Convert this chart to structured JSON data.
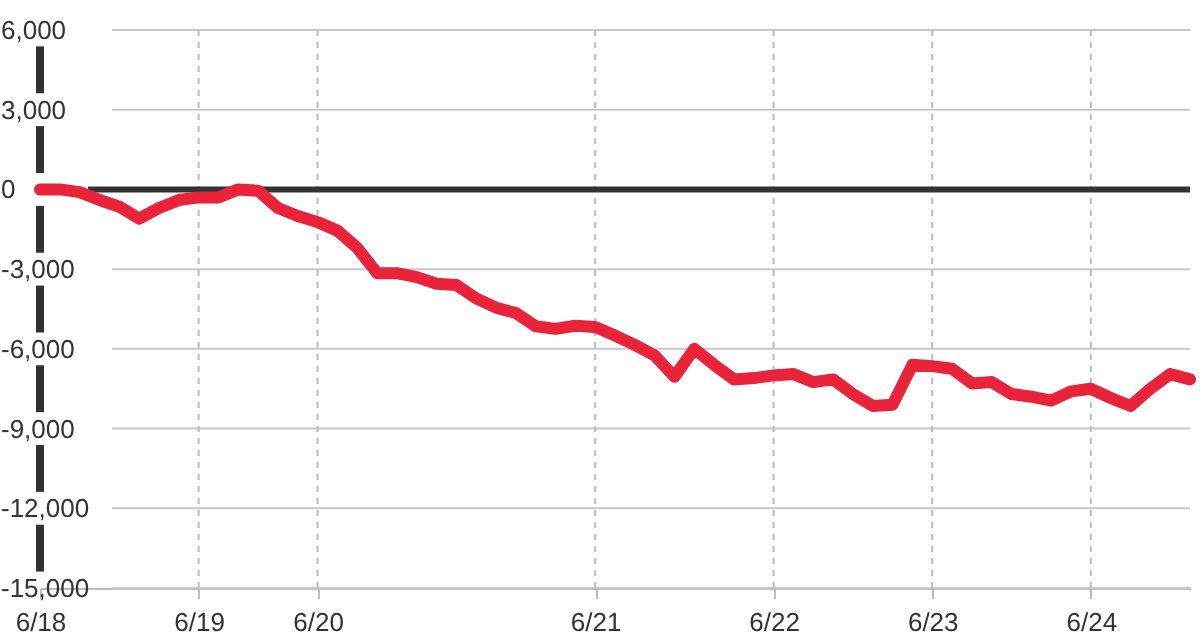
{
  "chart_data": {
    "type": "line",
    "categories": [
      "6/18",
      null,
      null,
      null,
      null,
      null,
      null,
      null,
      "6/19",
      null,
      null,
      null,
      null,
      null,
      "6/20",
      null,
      null,
      null,
      null,
      null,
      null,
      null,
      null,
      null,
      null,
      null,
      null,
      null,
      "6/21",
      null,
      null,
      null,
      null,
      null,
      null,
      null,
      null,
      "6/22",
      null,
      null,
      null,
      null,
      null,
      null,
      null,
      "6/23",
      null,
      null,
      null,
      null,
      null,
      null,
      null,
      "6/24",
      null,
      null,
      null,
      null,
      null
    ],
    "series": [
      {
        "color": "#e8233a",
        "values": [
          0,
          0,
          -100,
          -400,
          -650,
          -1100,
          -700,
          -400,
          -300,
          -300,
          0,
          -50,
          -700,
          -1000,
          -1230,
          -1550,
          -2200,
          -3150,
          -3150,
          -3300,
          -3550,
          -3600,
          -4100,
          -4450,
          -4650,
          -5150,
          -5250,
          -5130,
          -5180,
          -5500,
          -5850,
          -6250,
          -7050,
          -6000,
          -6600,
          -7150,
          -7100,
          -7000,
          -6950,
          -7250,
          -7150,
          -7700,
          -8150,
          -8100,
          -6600,
          -6650,
          -6750,
          -7300,
          -7250,
          -7700,
          -7800,
          -7950,
          -7600,
          -7500,
          -7850,
          -8150,
          -7500,
          -6950,
          -7150
        ]
      }
    ],
    "ylim": [
      -15000,
      6000
    ],
    "yticks": [
      {
        "value": -15000,
        "label": "-15,000"
      },
      {
        "value": -12000,
        "label": "-12,000"
      },
      {
        "value": -9000,
        "label": "-9,000"
      },
      {
        "value": -6000,
        "label": "-6,000"
      },
      {
        "value": -3000,
        "label": "-3,000"
      },
      0,
      {
        "value": 3000,
        "label": "3,000"
      },
      {
        "value": 6000,
        "label": "6,000"
      }
    ],
    "grid": true,
    "marker": "none",
    "line_style": "solid",
    "ref_lines": [
      {
        "axis": "y",
        "value": 0,
        "color": "#333333"
      }
    ]
  }
}
